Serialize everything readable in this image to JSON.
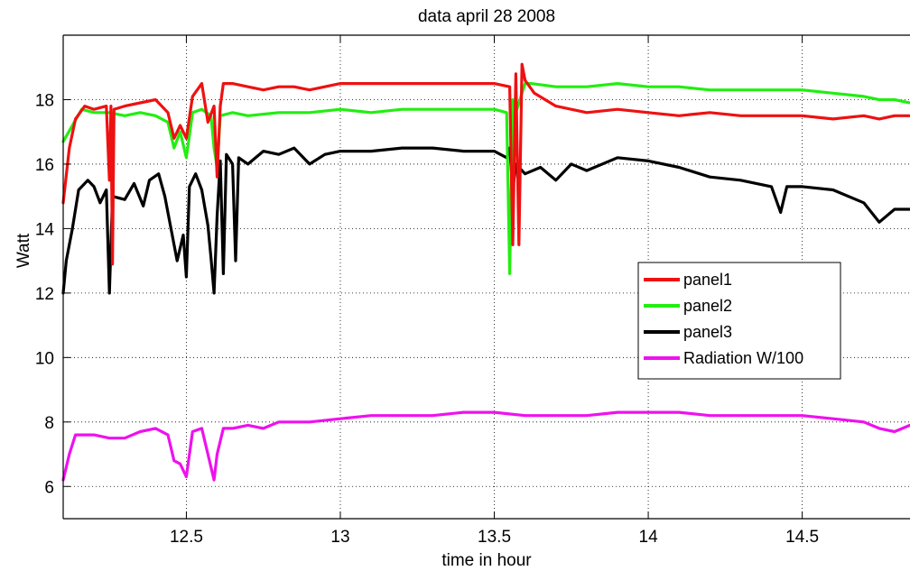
{
  "chart_data": {
    "type": "line",
    "title": "data  april 28 2008",
    "xlabel": "time in hour",
    "ylabel": "Watt",
    "xlim": [
      12.1,
      14.85
    ],
    "ylim": [
      5,
      20
    ],
    "xticks": [
      12.5,
      13,
      13.5,
      14,
      14.5
    ],
    "xtick_labels": [
      "12.5",
      "13",
      "13.5",
      "14",
      "14.5"
    ],
    "yticks": [
      6,
      8,
      10,
      12,
      14,
      16,
      18
    ],
    "ytick_labels": [
      "6",
      "8",
      "10",
      "12",
      "14",
      "16",
      "18"
    ],
    "grid": true,
    "legend_position": "center-right",
    "series": [
      {
        "name": "panel1",
        "color": "#ee1111",
        "points": [
          [
            12.1,
            14.8
          ],
          [
            12.12,
            16.5
          ],
          [
            12.14,
            17.4
          ],
          [
            12.17,
            17.8
          ],
          [
            12.2,
            17.7
          ],
          [
            12.24,
            17.8
          ],
          [
            12.25,
            15.5
          ],
          [
            12.255,
            17.8
          ],
          [
            12.26,
            12.9
          ],
          [
            12.265,
            17.7
          ],
          [
            12.3,
            17.8
          ],
          [
            12.35,
            17.9
          ],
          [
            12.4,
            18.0
          ],
          [
            12.44,
            17.6
          ],
          [
            12.46,
            16.8
          ],
          [
            12.48,
            17.2
          ],
          [
            12.5,
            16.8
          ],
          [
            12.52,
            18.1
          ],
          [
            12.55,
            18.5
          ],
          [
            12.57,
            17.3
          ],
          [
            12.59,
            17.8
          ],
          [
            12.6,
            15.6
          ],
          [
            12.61,
            17.8
          ],
          [
            12.62,
            18.5
          ],
          [
            12.65,
            18.5
          ],
          [
            12.7,
            18.4
          ],
          [
            12.75,
            18.3
          ],
          [
            12.8,
            18.4
          ],
          [
            12.85,
            18.4
          ],
          [
            12.9,
            18.3
          ],
          [
            13.0,
            18.5
          ],
          [
            13.1,
            18.5
          ],
          [
            13.2,
            18.5
          ],
          [
            13.3,
            18.5
          ],
          [
            13.4,
            18.5
          ],
          [
            13.5,
            18.5
          ],
          [
            13.55,
            18.4
          ],
          [
            13.56,
            13.5
          ],
          [
            13.57,
            18.8
          ],
          [
            13.58,
            13.5
          ],
          [
            13.59,
            19.1
          ],
          [
            13.6,
            18.6
          ],
          [
            13.63,
            18.2
          ],
          [
            13.7,
            17.8
          ],
          [
            13.8,
            17.6
          ],
          [
            13.9,
            17.7
          ],
          [
            14.0,
            17.6
          ],
          [
            14.1,
            17.5
          ],
          [
            14.2,
            17.6
          ],
          [
            14.3,
            17.5
          ],
          [
            14.4,
            17.5
          ],
          [
            14.5,
            17.5
          ],
          [
            14.6,
            17.4
          ],
          [
            14.7,
            17.5
          ],
          [
            14.75,
            17.4
          ],
          [
            14.8,
            17.5
          ],
          [
            14.85,
            17.5
          ]
        ]
      },
      {
        "name": "panel2",
        "color": "#22ee11",
        "points": [
          [
            12.1,
            16.7
          ],
          [
            12.13,
            17.2
          ],
          [
            12.16,
            17.7
          ],
          [
            12.2,
            17.6
          ],
          [
            12.25,
            17.6
          ],
          [
            12.3,
            17.5
          ],
          [
            12.35,
            17.6
          ],
          [
            12.4,
            17.5
          ],
          [
            12.44,
            17.3
          ],
          [
            12.46,
            16.5
          ],
          [
            12.48,
            17.0
          ],
          [
            12.5,
            16.2
          ],
          [
            12.52,
            17.6
          ],
          [
            12.55,
            17.7
          ],
          [
            12.58,
            17.5
          ],
          [
            12.59,
            16.5
          ],
          [
            12.6,
            15.9
          ],
          [
            12.61,
            17.5
          ],
          [
            12.65,
            17.6
          ],
          [
            12.7,
            17.5
          ],
          [
            12.8,
            17.6
          ],
          [
            12.9,
            17.6
          ],
          [
            13.0,
            17.7
          ],
          [
            13.1,
            17.6
          ],
          [
            13.2,
            17.7
          ],
          [
            13.3,
            17.7
          ],
          [
            13.4,
            17.7
          ],
          [
            13.5,
            17.7
          ],
          [
            13.54,
            17.6
          ],
          [
            13.55,
            12.6
          ],
          [
            13.56,
            18.0
          ],
          [
            13.57,
            17.6
          ],
          [
            13.6,
            18.5
          ],
          [
            13.62,
            18.5
          ],
          [
            13.7,
            18.4
          ],
          [
            13.8,
            18.4
          ],
          [
            13.9,
            18.5
          ],
          [
            14.0,
            18.4
          ],
          [
            14.1,
            18.4
          ],
          [
            14.2,
            18.3
          ],
          [
            14.3,
            18.3
          ],
          [
            14.4,
            18.3
          ],
          [
            14.5,
            18.3
          ],
          [
            14.6,
            18.2
          ],
          [
            14.7,
            18.1
          ],
          [
            14.75,
            18.0
          ],
          [
            14.8,
            18.0
          ],
          [
            14.85,
            17.9
          ]
        ]
      },
      {
        "name": "panel3",
        "color": "#000000",
        "points": [
          [
            12.1,
            12.0
          ],
          [
            12.11,
            13.0
          ],
          [
            12.13,
            14.0
          ],
          [
            12.15,
            15.2
          ],
          [
            12.18,
            15.5
          ],
          [
            12.2,
            15.3
          ],
          [
            12.22,
            14.8
          ],
          [
            12.24,
            15.2
          ],
          [
            12.25,
            12.0
          ],
          [
            12.26,
            15.0
          ],
          [
            12.3,
            14.9
          ],
          [
            12.33,
            15.4
          ],
          [
            12.36,
            14.7
          ],
          [
            12.38,
            15.5
          ],
          [
            12.41,
            15.7
          ],
          [
            12.43,
            15.0
          ],
          [
            12.45,
            14.0
          ],
          [
            12.47,
            13.0
          ],
          [
            12.49,
            13.8
          ],
          [
            12.5,
            12.5
          ],
          [
            12.51,
            15.3
          ],
          [
            12.53,
            15.7
          ],
          [
            12.55,
            15.2
          ],
          [
            12.57,
            14.1
          ],
          [
            12.58,
            13.1
          ],
          [
            12.59,
            12.0
          ],
          [
            12.6,
            14.4
          ],
          [
            12.61,
            16.1
          ],
          [
            12.62,
            12.6
          ],
          [
            12.63,
            16.3
          ],
          [
            12.65,
            16.0
          ],
          [
            12.66,
            13.0
          ],
          [
            12.67,
            16.2
          ],
          [
            12.7,
            16.0
          ],
          [
            12.75,
            16.4
          ],
          [
            12.8,
            16.3
          ],
          [
            12.85,
            16.5
          ],
          [
            12.9,
            16.0
          ],
          [
            12.95,
            16.3
          ],
          [
            13.0,
            16.4
          ],
          [
            13.1,
            16.4
          ],
          [
            13.2,
            16.5
          ],
          [
            13.3,
            16.5
          ],
          [
            13.4,
            16.4
          ],
          [
            13.5,
            16.4
          ],
          [
            13.54,
            16.2
          ],
          [
            13.55,
            16.5
          ],
          [
            13.56,
            15.2
          ],
          [
            13.57,
            16.0
          ],
          [
            13.6,
            15.7
          ],
          [
            13.65,
            15.9
          ],
          [
            13.7,
            15.5
          ],
          [
            13.75,
            16.0
          ],
          [
            13.8,
            15.8
          ],
          [
            13.9,
            16.2
          ],
          [
            14.0,
            16.1
          ],
          [
            14.1,
            15.9
          ],
          [
            14.2,
            15.6
          ],
          [
            14.3,
            15.5
          ],
          [
            14.4,
            15.3
          ],
          [
            14.43,
            14.5
          ],
          [
            14.45,
            15.3
          ],
          [
            14.5,
            15.3
          ],
          [
            14.6,
            15.2
          ],
          [
            14.7,
            14.8
          ],
          [
            14.75,
            14.2
          ],
          [
            14.8,
            14.6
          ],
          [
            14.85,
            14.6
          ]
        ]
      },
      {
        "name": "Radiation W/100",
        "color": "#ee11ee",
        "points": [
          [
            12.1,
            6.2
          ],
          [
            12.12,
            7.0
          ],
          [
            12.14,
            7.6
          ],
          [
            12.18,
            7.6
          ],
          [
            12.2,
            7.6
          ],
          [
            12.25,
            7.5
          ],
          [
            12.3,
            7.5
          ],
          [
            12.35,
            7.7
          ],
          [
            12.4,
            7.8
          ],
          [
            12.44,
            7.6
          ],
          [
            12.46,
            6.8
          ],
          [
            12.48,
            6.7
          ],
          [
            12.5,
            6.3
          ],
          [
            12.52,
            7.7
          ],
          [
            12.55,
            7.8
          ],
          [
            12.57,
            7.0
          ],
          [
            12.59,
            6.2
          ],
          [
            12.6,
            7.0
          ],
          [
            12.62,
            7.8
          ],
          [
            12.65,
            7.8
          ],
          [
            12.7,
            7.9
          ],
          [
            12.75,
            7.8
          ],
          [
            12.8,
            8.0
          ],
          [
            12.9,
            8.0
          ],
          [
            13.0,
            8.1
          ],
          [
            13.1,
            8.2
          ],
          [
            13.2,
            8.2
          ],
          [
            13.3,
            8.2
          ],
          [
            13.4,
            8.3
          ],
          [
            13.5,
            8.3
          ],
          [
            13.6,
            8.2
          ],
          [
            13.7,
            8.2
          ],
          [
            13.8,
            8.2
          ],
          [
            13.9,
            8.3
          ],
          [
            14.0,
            8.3
          ],
          [
            14.1,
            8.3
          ],
          [
            14.2,
            8.2
          ],
          [
            14.3,
            8.2
          ],
          [
            14.4,
            8.2
          ],
          [
            14.5,
            8.2
          ],
          [
            14.6,
            8.1
          ],
          [
            14.7,
            8.0
          ],
          [
            14.75,
            7.8
          ],
          [
            14.8,
            7.7
          ],
          [
            14.85,
            7.9
          ]
        ]
      }
    ]
  }
}
